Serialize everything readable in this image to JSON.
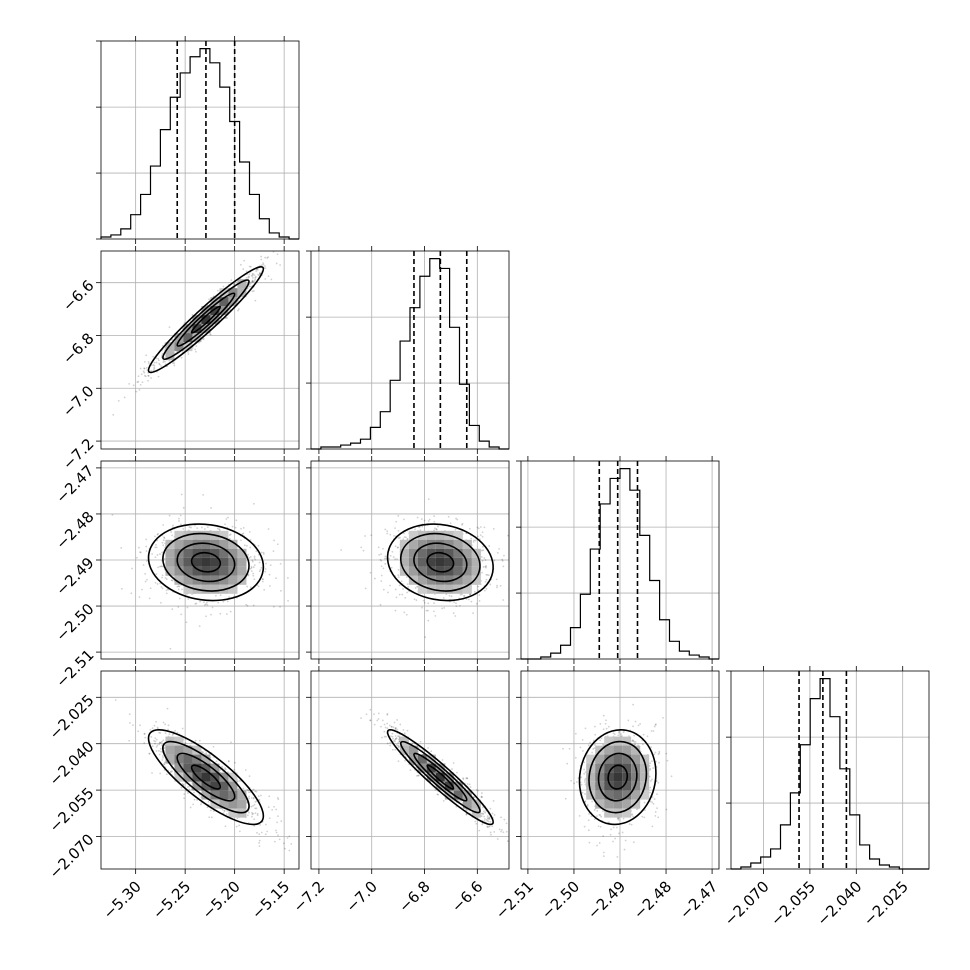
{
  "chart_data": {
    "type": "corner",
    "parameters": [
      {
        "ticks": [
          -5.3,
          -5.25,
          -5.2,
          -5.15
        ],
        "tick_labels": [
          "−5.30",
          "−5.25",
          "−5.20",
          "−5.15"
        ],
        "range": [
          -5.335,
          -5.135
        ],
        "quantiles": [
          -5.258,
          -5.229,
          -5.2
        ],
        "hist": [
          1,
          2,
          5,
          12,
          22,
          36,
          54,
          70,
          82,
          90,
          94,
          87,
          75,
          58,
          38,
          22,
          10,
          3,
          1,
          0
        ]
      },
      {
        "ticks": [
          -7.2,
          -7.0,
          -6.8,
          -6.6
        ],
        "tick_labels": [
          "−7.2",
          "−7.0",
          "−6.8",
          "−6.6"
        ],
        "range": [
          -7.23,
          -6.48
        ],
        "quantiles": [
          -6.84,
          -6.74,
          -6.64
        ],
        "hist": [
          0,
          1,
          1,
          2,
          3,
          5,
          11,
          19,
          35,
          55,
          72,
          88,
          97,
          92,
          62,
          33,
          12,
          4,
          1,
          0
        ]
      },
      {
        "ticks": [
          -2.51,
          -2.5,
          -2.49,
          -2.48,
          -2.47
        ],
        "tick_labels": [
          "−2.51",
          "−2.50",
          "−2.49",
          "−2.48",
          "−2.47"
        ],
        "range": [
          -2.5115,
          -2.4685
        ],
        "quantiles": [
          -2.4945,
          -2.4905,
          -2.4862
        ],
        "hist": [
          0,
          0,
          1,
          3,
          7,
          16,
          33,
          56,
          79,
          92,
          97,
          86,
          63,
          40,
          20,
          9,
          4,
          2,
          1,
          0
        ]
      },
      {
        "ticks": [
          -2.07,
          -2.055,
          -2.04,
          -2.025
        ],
        "tick_labels": [
          "−2.070",
          "−2.055",
          "−2.040",
          "−2.025"
        ],
        "range": [
          -2.0805,
          -2.0165
        ],
        "quantiles": [
          -2.0585,
          -2.0508,
          -2.0432
        ],
        "hist": [
          0,
          1,
          3,
          6,
          10,
          22,
          38,
          62,
          85,
          95,
          76,
          50,
          27,
          12,
          5,
          2,
          1,
          0,
          0,
          0
        ]
      }
    ],
    "correlations": [
      [
        1,
        0.96,
        -0.12,
        -0.82
      ],
      [
        0.96,
        1,
        -0.13,
        -0.95
      ],
      [
        -0.12,
        -0.13,
        1,
        0.08
      ],
      [
        -0.82,
        -0.95,
        0.08,
        1
      ]
    ],
    "grid": true,
    "axis_titles": ""
  }
}
